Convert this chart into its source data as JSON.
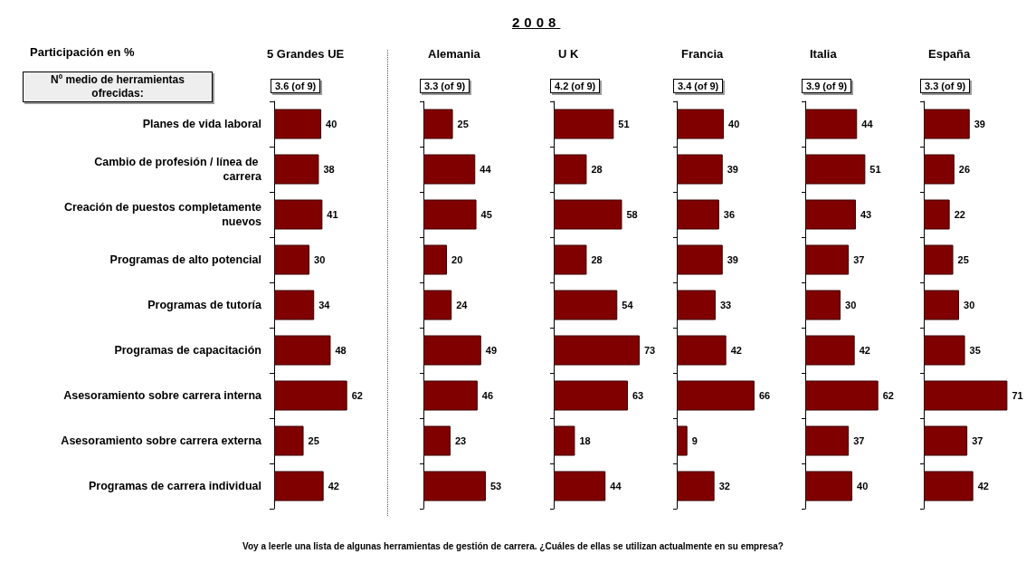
{
  "chart_data": [
    {
      "type": "bar",
      "orientation": "horizontal",
      "title": "5 Grandes UE",
      "ylabel": "Participación en %",
      "annotations": [
        "2008",
        "Nº medio de herramientas ofrecidas:",
        "Voy a leerle una lista de algunas herramientas de gestión de carrera. ¿Cuáles de ellas se utilizan actualmente en su empresa?",
        "3.6 (of 9)"
      ],
      "categories": [
        "Planes de vida laboral",
        "Cambio de profesión / línea de carrera",
        "Creación de puestos completamente nuevos",
        "Programas de alto potencial",
        "Programas de tutoría",
        "Programas de capacitación",
        "Asesoramiento sobre carrera interna",
        "Asesoramiento sobre carrera externa",
        "Programas de carrera individual"
      ],
      "values": [
        40,
        38,
        41,
        30,
        34,
        48,
        62,
        25,
        42
      ],
      "color": "#800000",
      "data_labels": true
    },
    {
      "type": "bar",
      "orientation": "horizontal",
      "title": "Alemania",
      "annotations": [
        "3.3 (of 9)"
      ],
      "categories": [
        null,
        null,
        null,
        null,
        null,
        null,
        null,
        null,
        null
      ],
      "values": [
        25,
        44,
        45,
        20,
        24,
        49,
        46,
        23,
        53
      ],
      "color": "#800000",
      "data_labels": true
    },
    {
      "type": "bar",
      "orientation": "horizontal",
      "title": "U K",
      "annotations": [
        "4.2 (of 9)"
      ],
      "categories": [
        null,
        null,
        null,
        null,
        null,
        null,
        null,
        null,
        null
      ],
      "values": [
        51,
        28,
        58,
        28,
        54,
        73,
        63,
        18,
        44
      ],
      "color": "#800000",
      "data_labels": true
    },
    {
      "type": "bar",
      "orientation": "horizontal",
      "title": "Francia",
      "annotations": [
        "3.4 (of 9)"
      ],
      "categories": [
        null,
        null,
        null,
        null,
        null,
        null,
        null,
        null,
        null
      ],
      "values": [
        40,
        39,
        36,
        39,
        33,
        42,
        66,
        9,
        32
      ],
      "color": "#800000",
      "data_labels": true
    },
    {
      "type": "bar",
      "orientation": "horizontal",
      "title": "Italia",
      "annotations": [
        "3.9 (of 9)"
      ],
      "categories": [
        null,
        null,
        null,
        null,
        null,
        null,
        null,
        null,
        null
      ],
      "values": [
        44,
        51,
        43,
        37,
        30,
        42,
        62,
        37,
        40
      ],
      "color": "#800000",
      "data_labels": true
    },
    {
      "type": "bar",
      "orientation": "horizontal",
      "title": "España",
      "annotations": [
        "3.3 (of 9)"
      ],
      "categories": [
        null,
        null,
        null,
        null,
        null,
        null,
        null,
        null,
        null
      ],
      "values": [
        39,
        26,
        22,
        25,
        30,
        35,
        71,
        37,
        42
      ],
      "color": "#800000",
      "data_labels": true
    }
  ]
}
